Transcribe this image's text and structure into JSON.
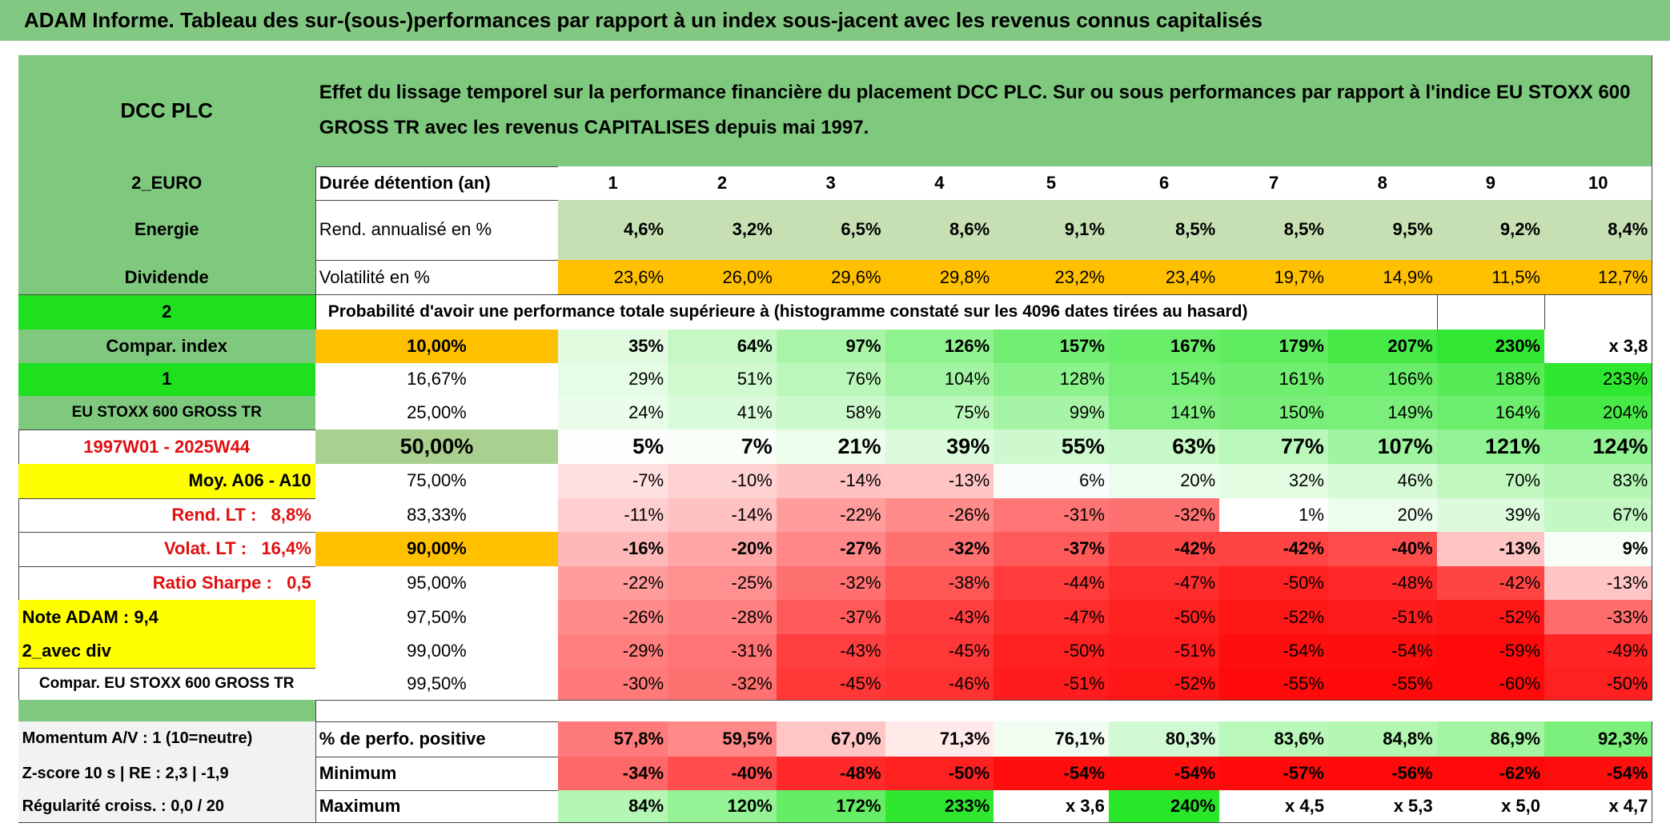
{
  "title": "ADAM Informe. Tableau des sur-(sous-)performances par rapport à un index sous-jacent avec les revenus connus capitalisés",
  "header": {
    "name": "DCC PLC",
    "description": "Effet du lissage temporel sur la performance financière du placement DCC PLC. Sur ou sous performances par rapport à l'indice EU STOXX 600 GROSS TR avec les revenus CAPITALISES depuis mai 1997."
  },
  "left_column": [
    "2_EURO",
    "Energie",
    "Dividende",
    "2",
    "Compar. index",
    "1",
    "EU STOXX 600 GROSS TR",
    "1997W01 - 2025W44",
    "Moy. A06 - A10",
    "Rend. LT :   8,8%",
    "Volat. LT :   16,4%",
    "Ratio Sharpe :   0,5",
    "Note ADAM : 9,4",
    "2_avec div",
    "Compar. EU STOXX 600 GROSS TR"
  ],
  "summary_rows": [
    {
      "label": "Durée détention (an)",
      "values": [
        1,
        2,
        3,
        4,
        5,
        6,
        7,
        8,
        9,
        10
      ]
    },
    {
      "label": "Rend. annualisé en %",
      "values": [
        "4,6%",
        "3,2%",
        "6,5%",
        "8,6%",
        "9,1%",
        "8,5%",
        "8,5%",
        "9,5%",
        "9,2%",
        "8,4%"
      ]
    },
    {
      "label": "Volatilité en %",
      "values": [
        "23,6%",
        "26,0%",
        "29,6%",
        "29,8%",
        "23,2%",
        "23,4%",
        "19,7%",
        "14,9%",
        "11,5%",
        "12,7%"
      ]
    }
  ],
  "probability_caption": "Probabilité d'avoir une performance totale supérieure à (histogramme constaté sur les 4096 dates tirées au hasard)",
  "quantile_rows": [
    {
      "level": "10,00%",
      "values": [
        "35%",
        "64%",
        "97%",
        "126%",
        "157%",
        "167%",
        "179%",
        "207%",
        "230%",
        "x 3,8"
      ]
    },
    {
      "level": "16,67%",
      "values": [
        "29%",
        "51%",
        "76%",
        "104%",
        "128%",
        "154%",
        "161%",
        "166%",
        "188%",
        "233%"
      ]
    },
    {
      "level": "25,00%",
      "values": [
        "24%",
        "41%",
        "58%",
        "75%",
        "99%",
        "141%",
        "150%",
        "149%",
        "164%",
        "204%"
      ]
    },
    {
      "level": "50,00%",
      "values": [
        "5%",
        "7%",
        "21%",
        "39%",
        "55%",
        "63%",
        "77%",
        "107%",
        "121%",
        "124%"
      ]
    },
    {
      "level": "75,00%",
      "values": [
        "-7%",
        "-10%",
        "-14%",
        "-13%",
        "6%",
        "20%",
        "32%",
        "46%",
        "70%",
        "83%"
      ]
    },
    {
      "level": "83,33%",
      "values": [
        "-11%",
        "-14%",
        "-22%",
        "-26%",
        "-31%",
        "-32%",
        "1%",
        "20%",
        "39%",
        "67%"
      ]
    },
    {
      "level": "90,00%",
      "values": [
        "-16%",
        "-20%",
        "-27%",
        "-32%",
        "-37%",
        "-42%",
        "-42%",
        "-40%",
        "-13%",
        "9%"
      ]
    },
    {
      "level": "95,00%",
      "values": [
        "-22%",
        "-25%",
        "-32%",
        "-38%",
        "-44%",
        "-47%",
        "-50%",
        "-48%",
        "-42%",
        "-13%"
      ]
    },
    {
      "level": "97,50%",
      "values": [
        "-26%",
        "-28%",
        "-37%",
        "-43%",
        "-47%",
        "-50%",
        "-52%",
        "-51%",
        "-52%",
        "-33%"
      ]
    },
    {
      "level": "99,00%",
      "values": [
        "-29%",
        "-31%",
        "-43%",
        "-45%",
        "-50%",
        "-51%",
        "-54%",
        "-54%",
        "-59%",
        "-49%"
      ]
    },
    {
      "level": "99,50%",
      "values": [
        "-30%",
        "-32%",
        "-45%",
        "-46%",
        "-51%",
        "-52%",
        "-55%",
        "-55%",
        "-60%",
        "-50%"
      ]
    }
  ],
  "bottom_rows": [
    {
      "name": "Momentum A/V : 1 (10=neutre)",
      "label": "% de perfo. positive",
      "values": [
        "57,8%",
        "59,5%",
        "67,0%",
        "71,3%",
        "76,1%",
        "80,3%",
        "83,6%",
        "84,8%",
        "86,9%",
        "92,3%"
      ]
    },
    {
      "name": "Z-score 10 s | RE : 2,3 | -1,9",
      "label": "Minimum",
      "values": [
        "-34%",
        "-40%",
        "-48%",
        "-50%",
        "-54%",
        "-54%",
        "-57%",
        "-56%",
        "-62%",
        "-54%"
      ]
    },
    {
      "name": "Régularité croiss. : 0,0 / 20",
      "label": "Maximum",
      "values": [
        "84%",
        "120%",
        "172%",
        "233%",
        "x 3,6",
        "240%",
        "x 4,5",
        "x 5,3",
        "x 5,0",
        "x 4,7"
      ]
    }
  ]
}
